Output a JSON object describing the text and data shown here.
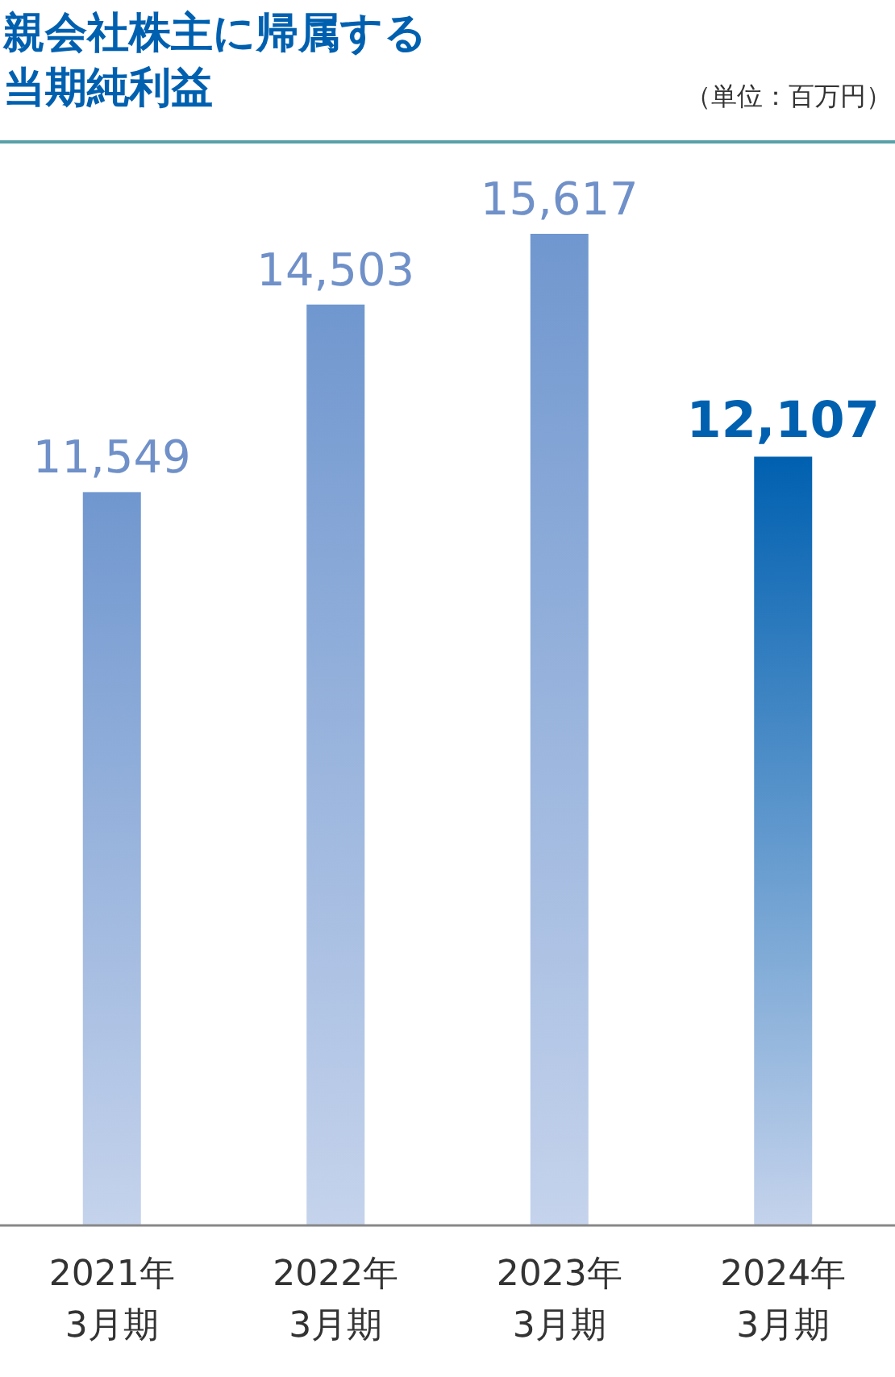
{
  "chart_data": {
    "type": "bar",
    "title": "親会社株主に帰属する当期純利益",
    "annotations": [
      "（単位：百万円）"
    ],
    "categories": [
      "2021年\n3月期",
      "2022年\n3月期",
      "2023年\n3月期",
      "2024年\n3月期"
    ],
    "values": [
      11549,
      14503,
      15617,
      12107
    ],
    "colors": [
      "#7097cf",
      "#7097cf",
      "#7097cf",
      "#0060b0"
    ],
    "value_labels": [
      "11,549",
      "14,503",
      "15,617",
      "12,107"
    ]
  }
}
